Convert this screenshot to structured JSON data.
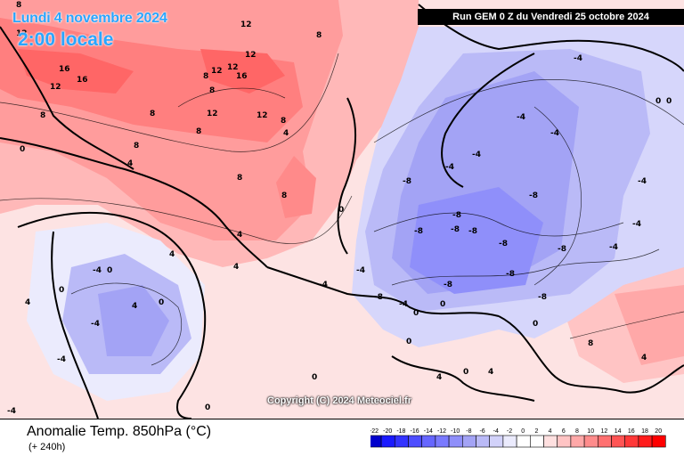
{
  "map": {
    "date_label": "Lundi 4 novembre 2024",
    "hour_label": "2:00 locale",
    "run_label": "Run GEM 0 Z du Vendredi 25 octobre 2024",
    "copyright": "Copyright (C) 2024 Meteociel.fr",
    "contour_labels": {
      "greenland": [
        "12",
        "16",
        "16",
        "12",
        "8",
        "8",
        "12",
        "12",
        "12",
        "16",
        "12",
        "8",
        "8",
        "12",
        "8",
        "8",
        "12",
        "8",
        "4",
        "8",
        "4",
        "0",
        "8"
      ],
      "atlantic": [
        "8",
        "8",
        "4",
        "4",
        "4",
        "0",
        "0",
        "4",
        "0"
      ],
      "north_america": [
        "-4",
        "-4",
        "0",
        "-4",
        "0",
        "4",
        "-4"
      ],
      "europe": [
        "-4",
        "-4",
        "-4",
        "-4",
        "-4",
        "-4",
        "-4",
        "-8",
        "-8",
        "-8",
        "-8",
        "-8",
        "-8",
        "-8",
        "-8",
        "-8",
        "-8",
        "-4",
        "-4",
        "-4",
        "-8",
        "-8",
        "0",
        "0",
        "-4",
        "0",
        "0"
      ],
      "south": [
        "0",
        "4",
        "4",
        "0",
        "0",
        "0",
        "8",
        "4"
      ]
    }
  },
  "footer": {
    "parameter": "Anomalie Temp. 850hPa (°C)",
    "lead_time": "(+ 240h)"
  },
  "legend": {
    "labels": [
      "-22",
      "-20",
      "-18",
      "-16",
      "-14",
      "-12",
      "-10",
      "-8",
      "-6",
      "-4",
      "-2",
      "0",
      "2",
      "4",
      "6",
      "8",
      "10",
      "12",
      "14",
      "16",
      "18",
      "20"
    ],
    "colors": [
      "#0000cc",
      "#1a1aff",
      "#3333ff",
      "#4d4dff",
      "#6666ff",
      "#7a7aff",
      "#8f8ffa",
      "#a3a3f5",
      "#babaf7",
      "#d2d2fa",
      "#ebebfd",
      "#ffffff",
      "#ffffff",
      "#ffe0e0",
      "#ffc4c4",
      "#ffa8a8",
      "#ff8c8c",
      "#ff7070",
      "#ff5454",
      "#ff3838",
      "#ff1c1c",
      "#ff0000"
    ]
  }
}
